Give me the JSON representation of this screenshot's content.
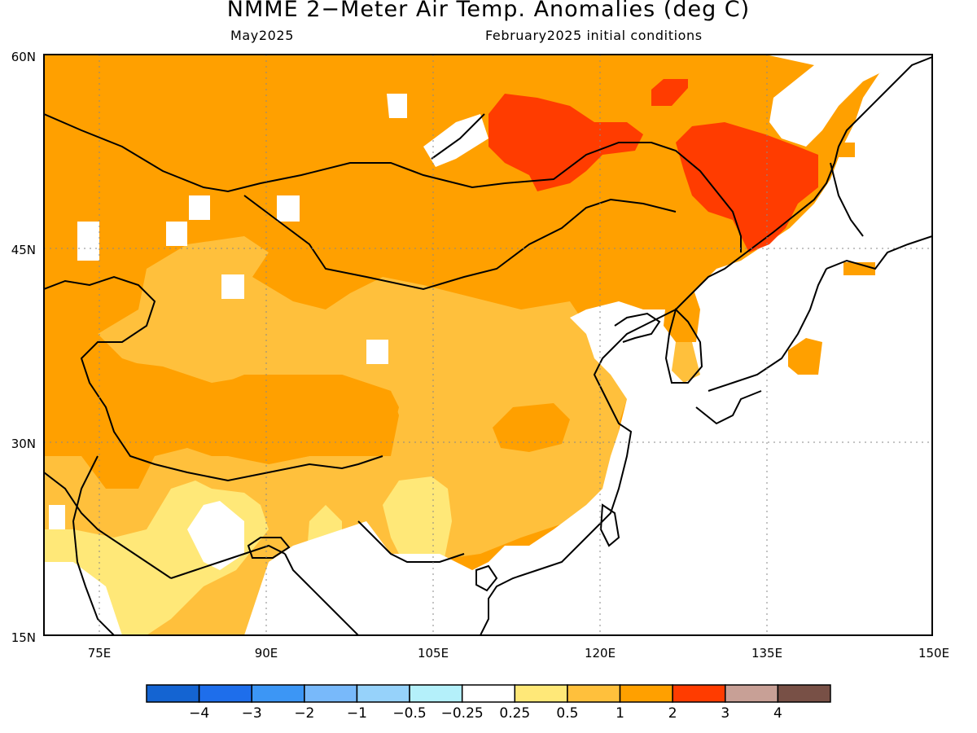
{
  "title": "NMME 2−Meter Air Temp. Anomalies (deg C)",
  "valid_month": "May2025",
  "initial_conditions": "February2025 initial conditions",
  "map": {
    "lon_range": [
      70,
      150
    ],
    "lat_range": [
      15,
      60
    ],
    "lon_ticks": [
      "75E",
      "90E",
      "105E",
      "120E",
      "135E",
      "150E"
    ],
    "lat_ticks": [
      "60N",
      "45N",
      "30N",
      "15N"
    ]
  },
  "colorbar": {
    "colors": [
      "#1464d2",
      "#1e6eeb",
      "#3c96f5",
      "#78b9fa",
      "#96d2fa",
      "#b4f0fa",
      "#ffffff",
      "#ffe878",
      "#ffc03c",
      "#ffa000",
      "#ff3c00",
      "#c8a096",
      "#785046"
    ],
    "labels": [
      "−4",
      "−3",
      "−2",
      "−1",
      "−0.5",
      "−0.25",
      "0.25",
      "0.5",
      "1",
      "2",
      "3",
      "4"
    ]
  }
}
